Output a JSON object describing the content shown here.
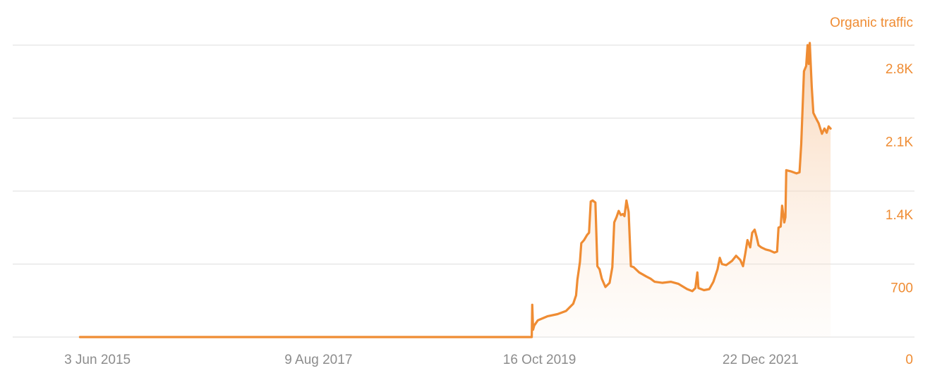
{
  "chart_data": {
    "type": "area",
    "series": [
      {
        "name": "Organic traffic",
        "color": "#ef8c33",
        "points": [
          [
            "2015-04-01",
            0
          ],
          [
            "2019-09-18",
            0
          ],
          [
            "2019-09-20",
            310
          ],
          [
            "2019-09-23",
            70
          ],
          [
            "2019-09-27",
            110
          ],
          [
            "2019-10-10",
            160
          ],
          [
            "2019-11-15",
            200
          ],
          [
            "2019-12-20",
            220
          ],
          [
            "2020-01-20",
            250
          ],
          [
            "2020-02-15",
            320
          ],
          [
            "2020-02-25",
            400
          ],
          [
            "2020-03-01",
            550
          ],
          [
            "2020-03-10",
            720
          ],
          [
            "2020-03-15",
            900
          ],
          [
            "2020-03-25",
            930
          ],
          [
            "2020-04-05",
            980
          ],
          [
            "2020-04-12",
            1000
          ],
          [
            "2020-04-18",
            1300
          ],
          [
            "2020-04-25",
            1310
          ],
          [
            "2020-05-05",
            1290
          ],
          [
            "2020-05-12",
            680
          ],
          [
            "2020-05-20",
            650
          ],
          [
            "2020-05-28",
            560
          ],
          [
            "2020-06-10",
            480
          ],
          [
            "2020-06-25",
            520
          ],
          [
            "2020-07-05",
            670
          ],
          [
            "2020-07-12",
            1100
          ],
          [
            "2020-07-20",
            1150
          ],
          [
            "2020-07-28",
            1210
          ],
          [
            "2020-08-05",
            1170
          ],
          [
            "2020-08-12",
            1180
          ],
          [
            "2020-08-18",
            1160
          ],
          [
            "2020-08-25",
            1310
          ],
          [
            "2020-09-02",
            1200
          ],
          [
            "2020-09-10",
            680
          ],
          [
            "2020-09-20",
            670
          ],
          [
            "2020-10-10",
            620
          ],
          [
            "2020-11-05",
            580
          ],
          [
            "2020-11-20",
            560
          ],
          [
            "2020-12-05",
            530
          ],
          [
            "2021-01-01",
            520
          ],
          [
            "2021-02-01",
            530
          ],
          [
            "2021-03-01",
            510
          ],
          [
            "2021-04-01",
            460
          ],
          [
            "2021-04-20",
            440
          ],
          [
            "2021-05-01",
            470
          ],
          [
            "2021-05-08",
            620
          ],
          [
            "2021-05-12",
            470
          ],
          [
            "2021-06-01",
            450
          ],
          [
            "2021-06-20",
            460
          ],
          [
            "2021-07-05",
            530
          ],
          [
            "2021-07-20",
            650
          ],
          [
            "2021-07-28",
            760
          ],
          [
            "2021-08-05",
            700
          ],
          [
            "2021-08-20",
            690
          ],
          [
            "2021-09-10",
            730
          ],
          [
            "2021-09-25",
            780
          ],
          [
            "2021-10-10",
            740
          ],
          [
            "2021-10-20",
            680
          ],
          [
            "2021-10-28",
            800
          ],
          [
            "2021-11-05",
            930
          ],
          [
            "2021-11-15",
            860
          ],
          [
            "2021-11-22",
            1000
          ],
          [
            "2021-12-01",
            1030
          ],
          [
            "2021-12-08",
            960
          ],
          [
            "2021-12-15",
            880
          ],
          [
            "2021-12-25",
            860
          ],
          [
            "2022-01-10",
            840
          ],
          [
            "2022-01-25",
            830
          ],
          [
            "2022-02-10",
            810
          ],
          [
            "2022-02-20",
            820
          ],
          [
            "2022-02-25",
            1050
          ],
          [
            "2022-03-05",
            1060
          ],
          [
            "2022-03-10",
            1260
          ],
          [
            "2022-03-18",
            1100
          ],
          [
            "2022-03-22",
            1150
          ],
          [
            "2022-03-25",
            1600
          ],
          [
            "2022-04-10",
            1590
          ],
          [
            "2022-05-01",
            1570
          ],
          [
            "2022-05-12",
            1580
          ],
          [
            "2022-05-18",
            1850
          ],
          [
            "2022-05-28",
            2550
          ],
          [
            "2022-06-05",
            2600
          ],
          [
            "2022-06-10",
            2800
          ],
          [
            "2022-06-14",
            2620
          ],
          [
            "2022-06-18",
            2820
          ],
          [
            "2022-06-25",
            2400
          ],
          [
            "2022-07-01",
            2150
          ],
          [
            "2022-07-10",
            2100
          ],
          [
            "2022-07-20",
            2050
          ],
          [
            "2022-08-01",
            1950
          ],
          [
            "2022-08-10",
            2000
          ],
          [
            "2022-08-18",
            1960
          ],
          [
            "2022-08-25",
            2020
          ],
          [
            "2022-09-01",
            2000
          ]
        ]
      }
    ],
    "title": "",
    "xlabel": "",
    "ylabel": "",
    "series_title": "Organic traffic",
    "x_ticks": [
      {
        "date": "2015-06-03",
        "label": "3 Jun 2015"
      },
      {
        "date": "2017-08-09",
        "label": "9 Aug 2017"
      },
      {
        "date": "2019-10-16",
        "label": "16 Oct 2019"
      },
      {
        "date": "2021-12-22",
        "label": "22 Dec 2021"
      }
    ],
    "y_ticks": [
      {
        "value": 0,
        "label": "0"
      },
      {
        "value": 700,
        "label": "700"
      },
      {
        "value": 1400,
        "label": "1.4K"
      },
      {
        "value": 2100,
        "label": "2.1K"
      },
      {
        "value": 2800,
        "label": "2.8K"
      }
    ],
    "x_range": [
      "2014-08-01",
      "2023-07-01"
    ],
    "ylim": [
      0,
      2800
    ],
    "grid": true,
    "legend": "top-right",
    "colors": {
      "line": "#ef8c33",
      "fill": "#f7c9a0",
      "grid": "#e3e3e3",
      "x_tick_text": "#8c8c8c"
    }
  }
}
